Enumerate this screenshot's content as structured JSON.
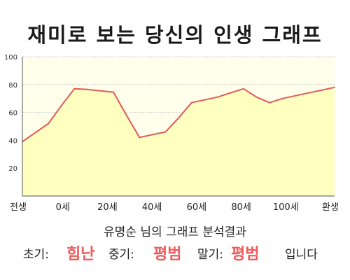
{
  "title": "재미로 보는 당신의 인생 그래프",
  "colors": {
    "plot_bg": "#FFFFEC",
    "area_fill": "#FFFFBF",
    "line": "#E05A5A",
    "grid": "#C8C8C8",
    "highlight_text": "#F05A5A"
  },
  "chart_data": {
    "type": "area",
    "categories": [
      "전생",
      "0세",
      "20세",
      "40세",
      "60세",
      "80세",
      "100세",
      "환생"
    ],
    "x": [
      -10,
      0,
      5,
      10,
      15,
      20,
      25,
      30,
      35,
      40,
      45,
      50,
      55,
      60,
      65,
      70,
      75,
      80,
      85,
      90,
      95,
      100,
      105,
      110
    ],
    "series": [
      {
        "values": [
          39,
          52,
          65,
          77,
          76.5,
          75.5,
          74.5,
          58,
          42,
          44,
          46,
          56,
          67,
          69,
          71,
          74,
          77,
          71,
          67,
          70,
          72,
          74,
          76,
          78
        ]
      }
    ],
    "ylim": [
      0,
      100
    ],
    "yticks": [
      20,
      40,
      60,
      80,
      100
    ],
    "grid": true,
    "legend": "none"
  },
  "result": {
    "heading": "유명순 님의 그래프 분석결과",
    "early_label": "초기:",
    "early_value": "힘난",
    "mid_label": "중기:",
    "mid_value": "평범",
    "late_label": "말기:",
    "late_value": "평범",
    "suffix": "입니다"
  }
}
